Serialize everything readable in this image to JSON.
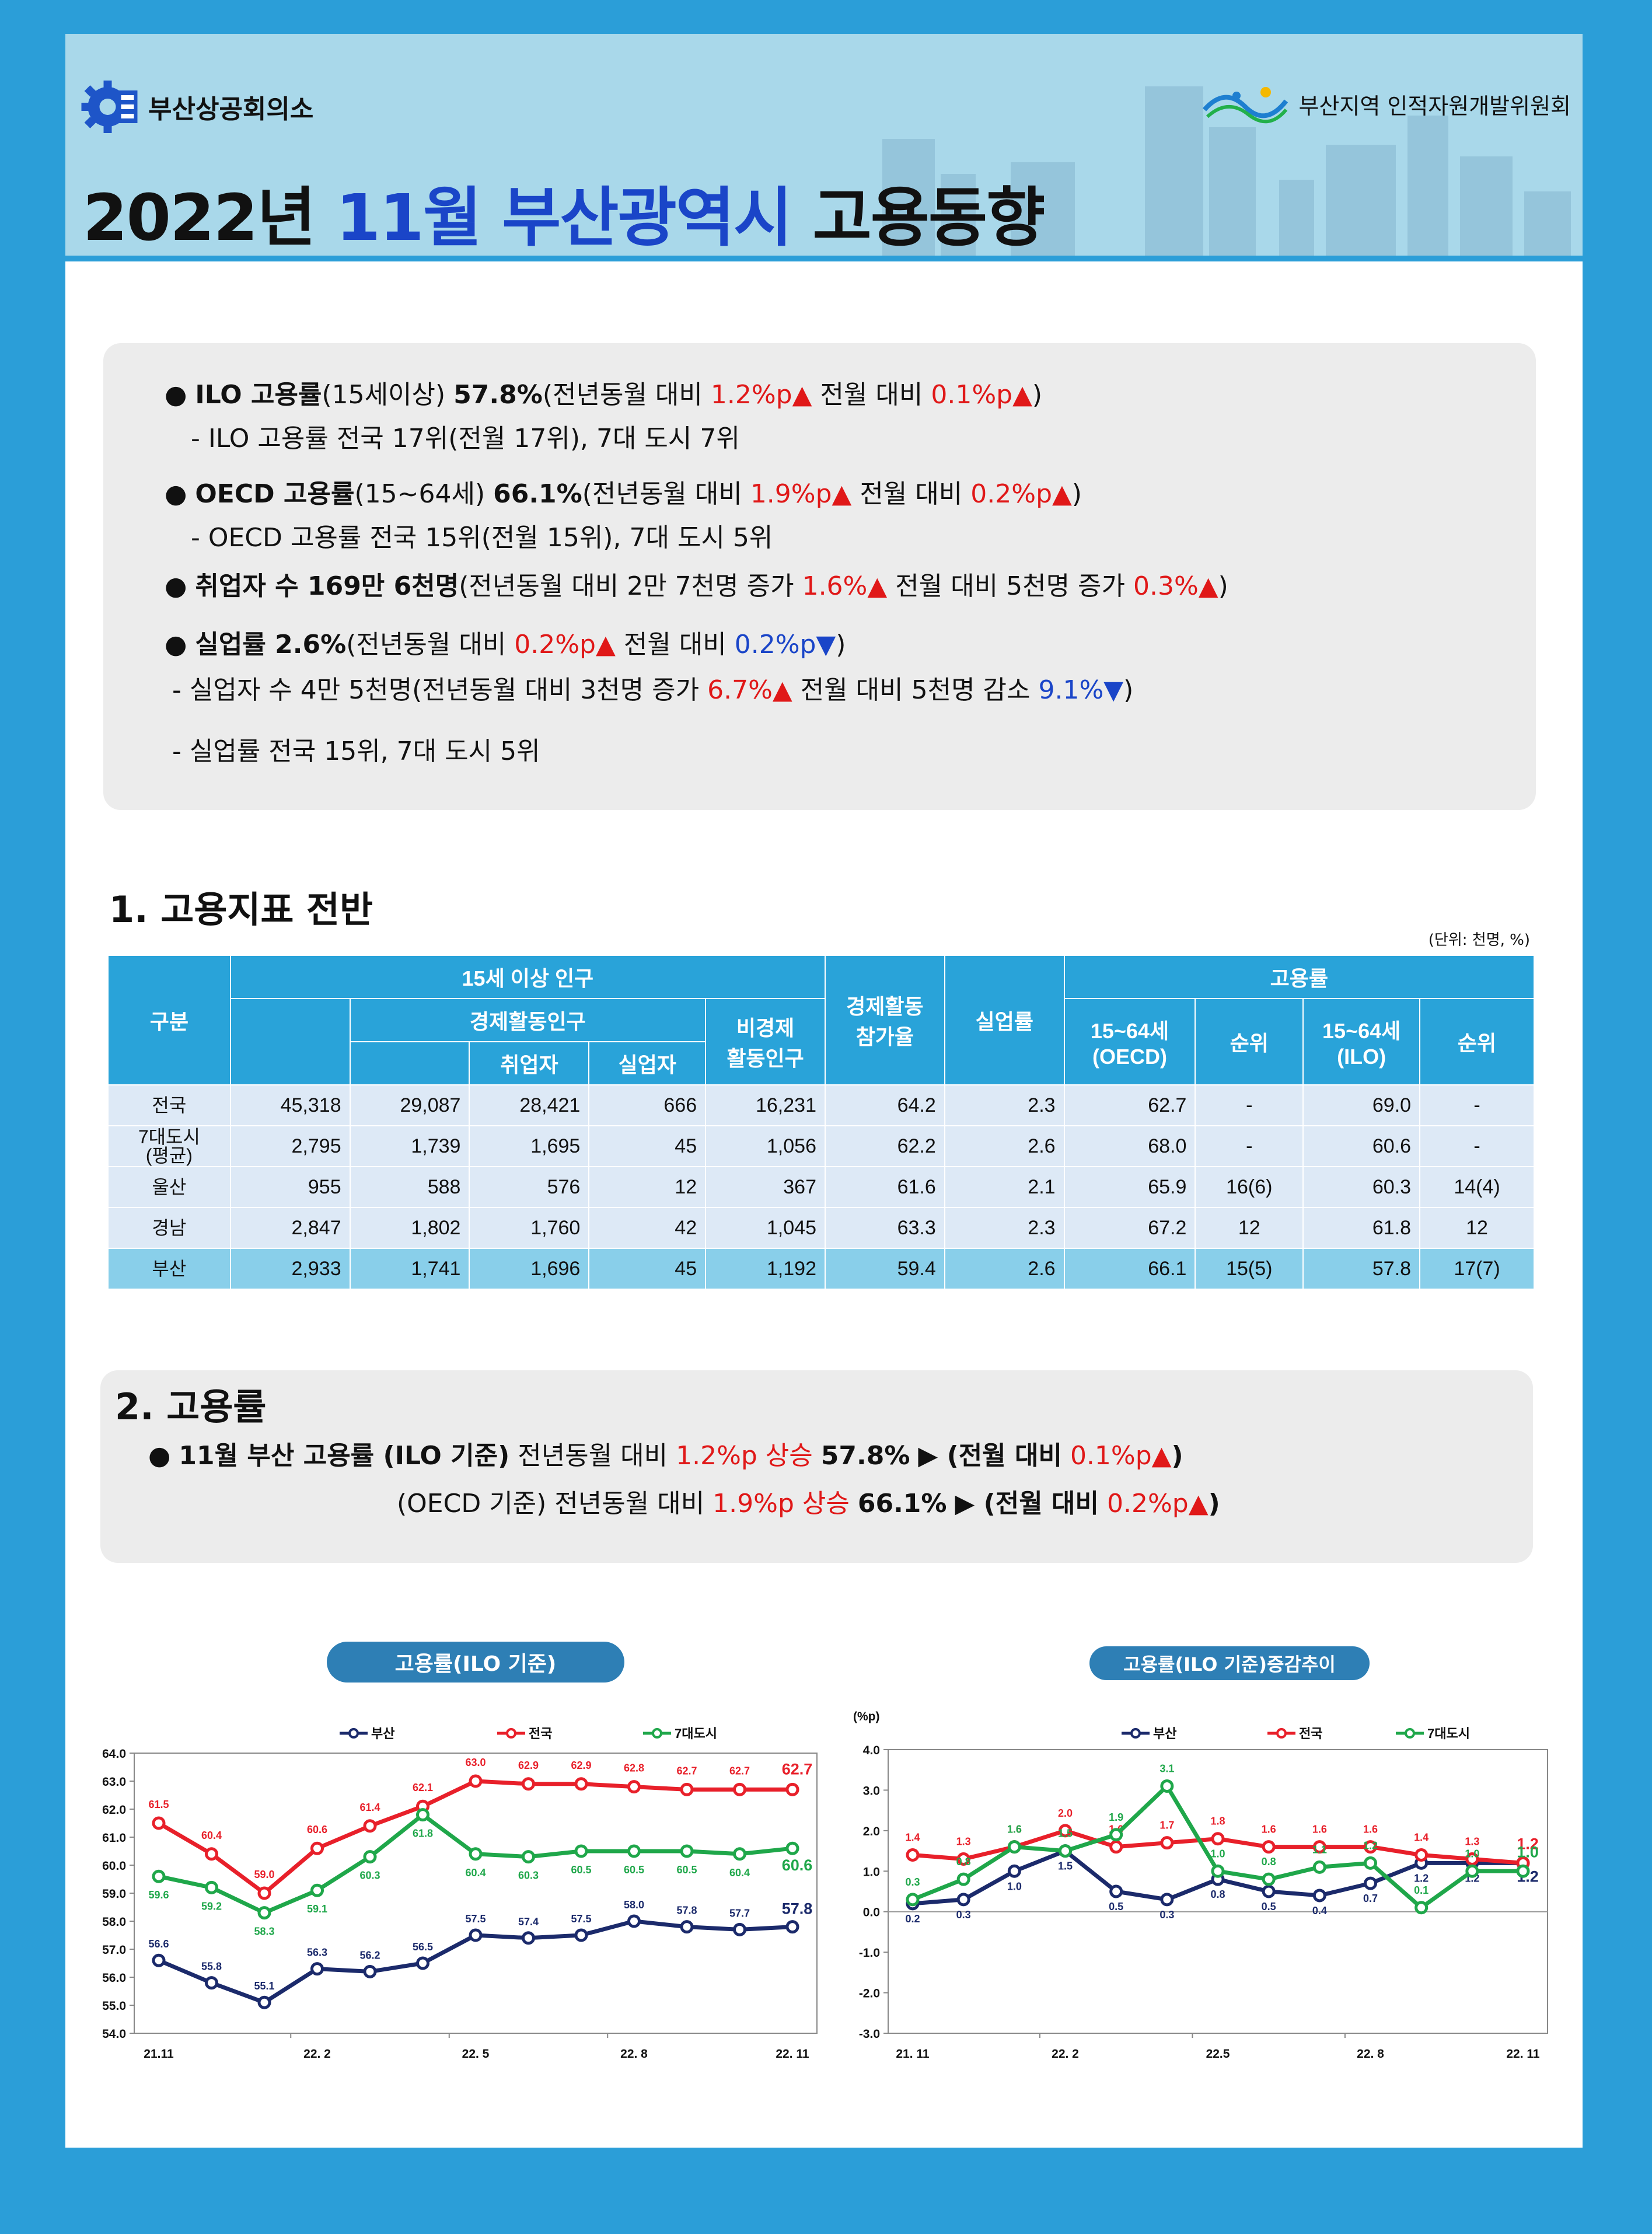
{
  "header": {
    "org_left": "부산상공회의소",
    "org_right": "부산지역 인적자원개발위원회",
    "title_year": "2022년",
    "title_month": "11월",
    "title_city": "부산광역시",
    "title_topic": "고용동향"
  },
  "summary": {
    "l1_bullet": "●",
    "l1_bold": "ILO 고용률",
    "l1_a": "(15세이상)",
    "l1_val": "57.8%",
    "l1_b": "(전년동월 대비",
    "l1_yoy": "1.2%p▲",
    "l1_c": "전월 대비",
    "l1_mom": "0.1%p▲",
    "l1_d": ")",
    "l2": "-  ILO 고용률 전국 17위(전월 17위), 7대 도시 7위",
    "l3_bold": "OECD 고용률",
    "l3_a": "(15~64세)",
    "l3_val": "66.1%",
    "l3_b": "(전년동월 대비",
    "l3_yoy": "1.9%p▲",
    "l3_c": "전월 대비",
    "l3_mom": "0.2%p▲",
    "l3_d": ")",
    "l4": "-  OECD 고용률 전국 15위(전월 15위), 7대 도시 5위",
    "l5_bold": "취업자 수 169만 6천명",
    "l5_a": "(전년동월 대비 2만 7천명 증가",
    "l5_yoy": "1.6%▲",
    "l5_b": "전월 대비 5천명 증가",
    "l5_mom": "0.3%▲",
    "l5_c": ")",
    "l6_bold": "실업률 2.6%",
    "l6_a": "(전년동월 대비",
    "l6_yoy": "0.2%p▲",
    "l6_b": "전월 대비",
    "l6_mom": "0.2%p▼",
    "l6_c": ")",
    "l7_a": "- 실업자 수 4만 5천명(전년동월 대비 3천명 증가",
    "l7_yoy": "6.7%▲",
    "l7_b": "전월 대비 5천명 감소",
    "l7_mom": "9.1%▼",
    "l7_c": ")",
    "l8": "- 실업률 전국 15위, 7대 도시 5위"
  },
  "section1": {
    "title": "1. 고용지표 전반",
    "unit": "(단위: 천명, %)",
    "headers": {
      "gubun": "구분",
      "pop15": "15세 이상 인구",
      "econ_active": "경제활동인구",
      "employed": "취업자",
      "unemployed": "실업자",
      "non_active_1": "비경제",
      "non_active_2": "활동인구",
      "participation_1": "경제활동",
      "participation_2": "참가율",
      "unemp_rate": "실업률",
      "emp_rate": "고용률",
      "oecd_1": "15~64세",
      "oecd_2": "(OECD)",
      "rank": "순위",
      "ilo_1": "15~64세",
      "ilo_2": "(ILO)",
      "rank2": "순위"
    },
    "rows": [
      {
        "label": "전국",
        "label2": "",
        "pop": "45,318",
        "active": "29,087",
        "emp": "28,421",
        "unemp": "666",
        "nonactive": "16,231",
        "part": "64.2",
        "urate": "2.3",
        "oecd": "62.7",
        "orank": "-",
        "ilo": "69.0",
        "irank": "-"
      },
      {
        "label": "7대도시",
        "label2": "(평균)",
        "pop": "2,795",
        "active": "1,739",
        "emp": "1,695",
        "unemp": "45",
        "nonactive": "1,056",
        "part": "62.2",
        "urate": "2.6",
        "oecd": "68.0",
        "orank": "-",
        "ilo": "60.6",
        "irank": "-"
      },
      {
        "label": "울산",
        "label2": "",
        "pop": "955",
        "active": "588",
        "emp": "576",
        "unemp": "12",
        "nonactive": "367",
        "part": "61.6",
        "urate": "2.1",
        "oecd": "65.9",
        "orank": "16(6)",
        "ilo": "60.3",
        "irank": "14(4)"
      },
      {
        "label": "경남",
        "label2": "",
        "pop": "2,847",
        "active": "1,802",
        "emp": "1,760",
        "unemp": "42",
        "nonactive": "1,045",
        "part": "63.3",
        "urate": "2.3",
        "oecd": "67.2",
        "orank": "12",
        "ilo": "61.8",
        "irank": "12"
      },
      {
        "label": "부산",
        "label2": "",
        "pop": "2,933",
        "active": "1,741",
        "emp": "1,696",
        "unemp": "45",
        "nonactive": "1,192",
        "part": "59.4",
        "urate": "2.6",
        "oecd": "66.1",
        "orank": "15(5)",
        "ilo": "57.8",
        "irank": "17(7)"
      }
    ]
  },
  "section2": {
    "title": "2. 고용률",
    "l1_bullet": "●",
    "l1_bold": "11월 부산 고용률 (ILO 기준)",
    "l1_a": "전년동월 대비",
    "l1_yoy": "1.2%p 상승",
    "l1_val": "57.8%",
    "l1_b": "▶ (전월 대비",
    "l1_mom": "0.1%p▲",
    "l1_c": ")",
    "l2_a": "(OECD 기준) 전년동월 대비",
    "l2_yoy": "1.9%p 상승",
    "l2_val": "66.1%",
    "l2_b": "▶ (전월 대비",
    "l2_mom": "0.2%p▲",
    "l2_c": ")"
  },
  "colors": {
    "busan": "#1b2a6b",
    "nation": "#e8202a",
    "seven": "#1fa74a",
    "accent_blue": "#1a45c8",
    "accent_red": "#e01818"
  },
  "chart_data": [
    {
      "type": "line",
      "title": "고용률(ILO 기준)",
      "x": [
        "21.11",
        "",
        "",
        "22. 2",
        "",
        "",
        "22. 5",
        "",
        "",
        "22. 8",
        "",
        "",
        "22. 11"
      ],
      "ylim": [
        54.0,
        64.0
      ],
      "yticks": [
        "54.0",
        "55.0",
        "56.0",
        "57.0",
        "58.0",
        "59.0",
        "60.0",
        "61.0",
        "62.0",
        "63.0",
        "64.0"
      ],
      "series": [
        {
          "name": "부산",
          "color": "#1b2a6b",
          "values": [
            56.6,
            55.8,
            55.1,
            56.3,
            56.2,
            56.5,
            57.5,
            57.4,
            57.5,
            58.0,
            57.8,
            57.7,
            57.8
          ]
        },
        {
          "name": "전국",
          "color": "#e8202a",
          "values": [
            61.5,
            60.4,
            59.0,
            60.6,
            61.4,
            62.1,
            63.0,
            62.9,
            62.9,
            62.8,
            62.7,
            62.7,
            62.7
          ]
        },
        {
          "name": "7대도시",
          "color": "#1fa74a",
          "values": [
            59.6,
            59.2,
            58.3,
            59.1,
            60.3,
            61.8,
            60.4,
            60.3,
            60.5,
            60.5,
            60.5,
            60.4,
            60.6
          ]
        }
      ]
    },
    {
      "type": "line",
      "title": "고용률(ILO 기준)증감추이",
      "yunit": "(%p)",
      "x": [
        "21. 11",
        "",
        "",
        "22. 2",
        "",
        "",
        "22.5",
        "",
        "",
        "22. 8",
        "",
        "",
        "22. 11"
      ],
      "ylim": [
        -3.0,
        4.0
      ],
      "yticks": [
        "-3.0",
        "-2.0",
        "-1.0",
        "0.0",
        "1.0",
        "2.0",
        "3.0",
        "4.0"
      ],
      "series": [
        {
          "name": "부산",
          "color": "#1b2a6b",
          "values": [
            0.2,
            0.3,
            1.0,
            1.5,
            0.5,
            0.3,
            0.8,
            0.5,
            0.4,
            0.7,
            1.2,
            1.2,
            1.2
          ]
        },
        {
          "name": "전국",
          "color": "#e8202a",
          "values": [
            1.4,
            1.3,
            1.6,
            2.0,
            1.6,
            1.7,
            1.8,
            1.6,
            1.6,
            1.6,
            1.4,
            1.3,
            1.2
          ]
        },
        {
          "name": "7대도시",
          "color": "#1fa74a",
          "values": [
            0.3,
            0.8,
            1.6,
            1.5,
            1.9,
            3.1,
            1.0,
            0.8,
            1.1,
            1.2,
            0.1,
            1.0,
            1.0
          ]
        }
      ]
    }
  ]
}
